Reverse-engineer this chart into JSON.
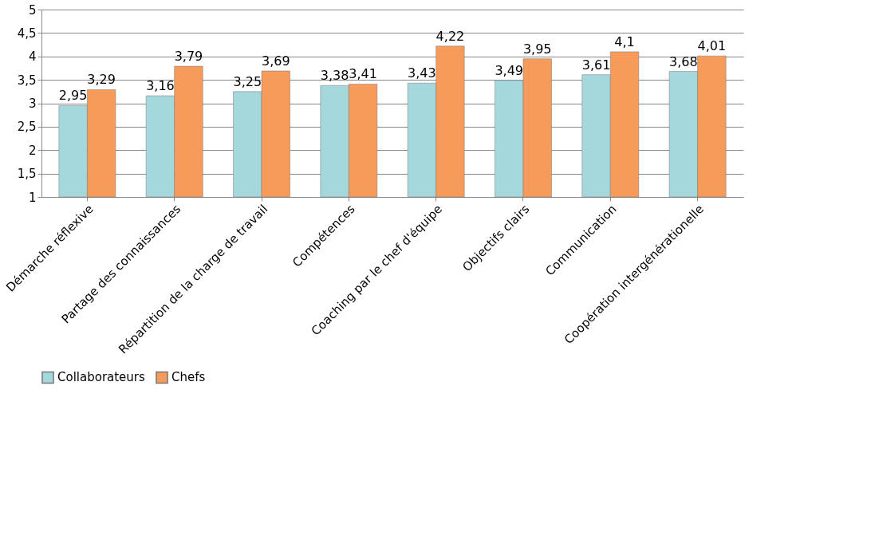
{
  "chart_data": {
    "type": "bar",
    "categories": [
      "Démarche réflexive",
      "Partage des connaissances",
      "Répartition de la charge de travail",
      "Compétences",
      "Coaching par le chef d'équipe",
      "Objectifs clairs",
      "Communication",
      "Coopération intergénérationelle"
    ],
    "series": [
      {
        "name": "Collaborateurs",
        "color": "#a5d8dc",
        "values": [
          2.95,
          3.16,
          3.25,
          3.38,
          3.43,
          3.49,
          3.61,
          3.68
        ],
        "value_labels": [
          "2,95",
          "3,16",
          "3,25",
          "3,38",
          "3,43",
          "3,49",
          "3,61",
          "3,68"
        ]
      },
      {
        "name": "Chefs",
        "color": "#f79b5a",
        "values": [
          3.29,
          3.79,
          3.69,
          3.41,
          4.22,
          3.95,
          4.1,
          4.01
        ],
        "value_labels": [
          "3,29",
          "3,79",
          "3,69",
          "3,41",
          "4,22",
          "3,95",
          "4,1",
          "4,01"
        ]
      }
    ],
    "ylim": [
      1,
      5
    ],
    "yticks": [
      1,
      {
        "value": 1.5,
        "label": "1,5"
      },
      2,
      {
        "value": 2.5,
        "label": "2,5"
      },
      3,
      {
        "value": 3.5,
        "label": "3,5"
      },
      4,
      {
        "value": 4.5,
        "label": "4,5"
      },
      5
    ],
    "grid": "y",
    "legend": "bottom"
  }
}
